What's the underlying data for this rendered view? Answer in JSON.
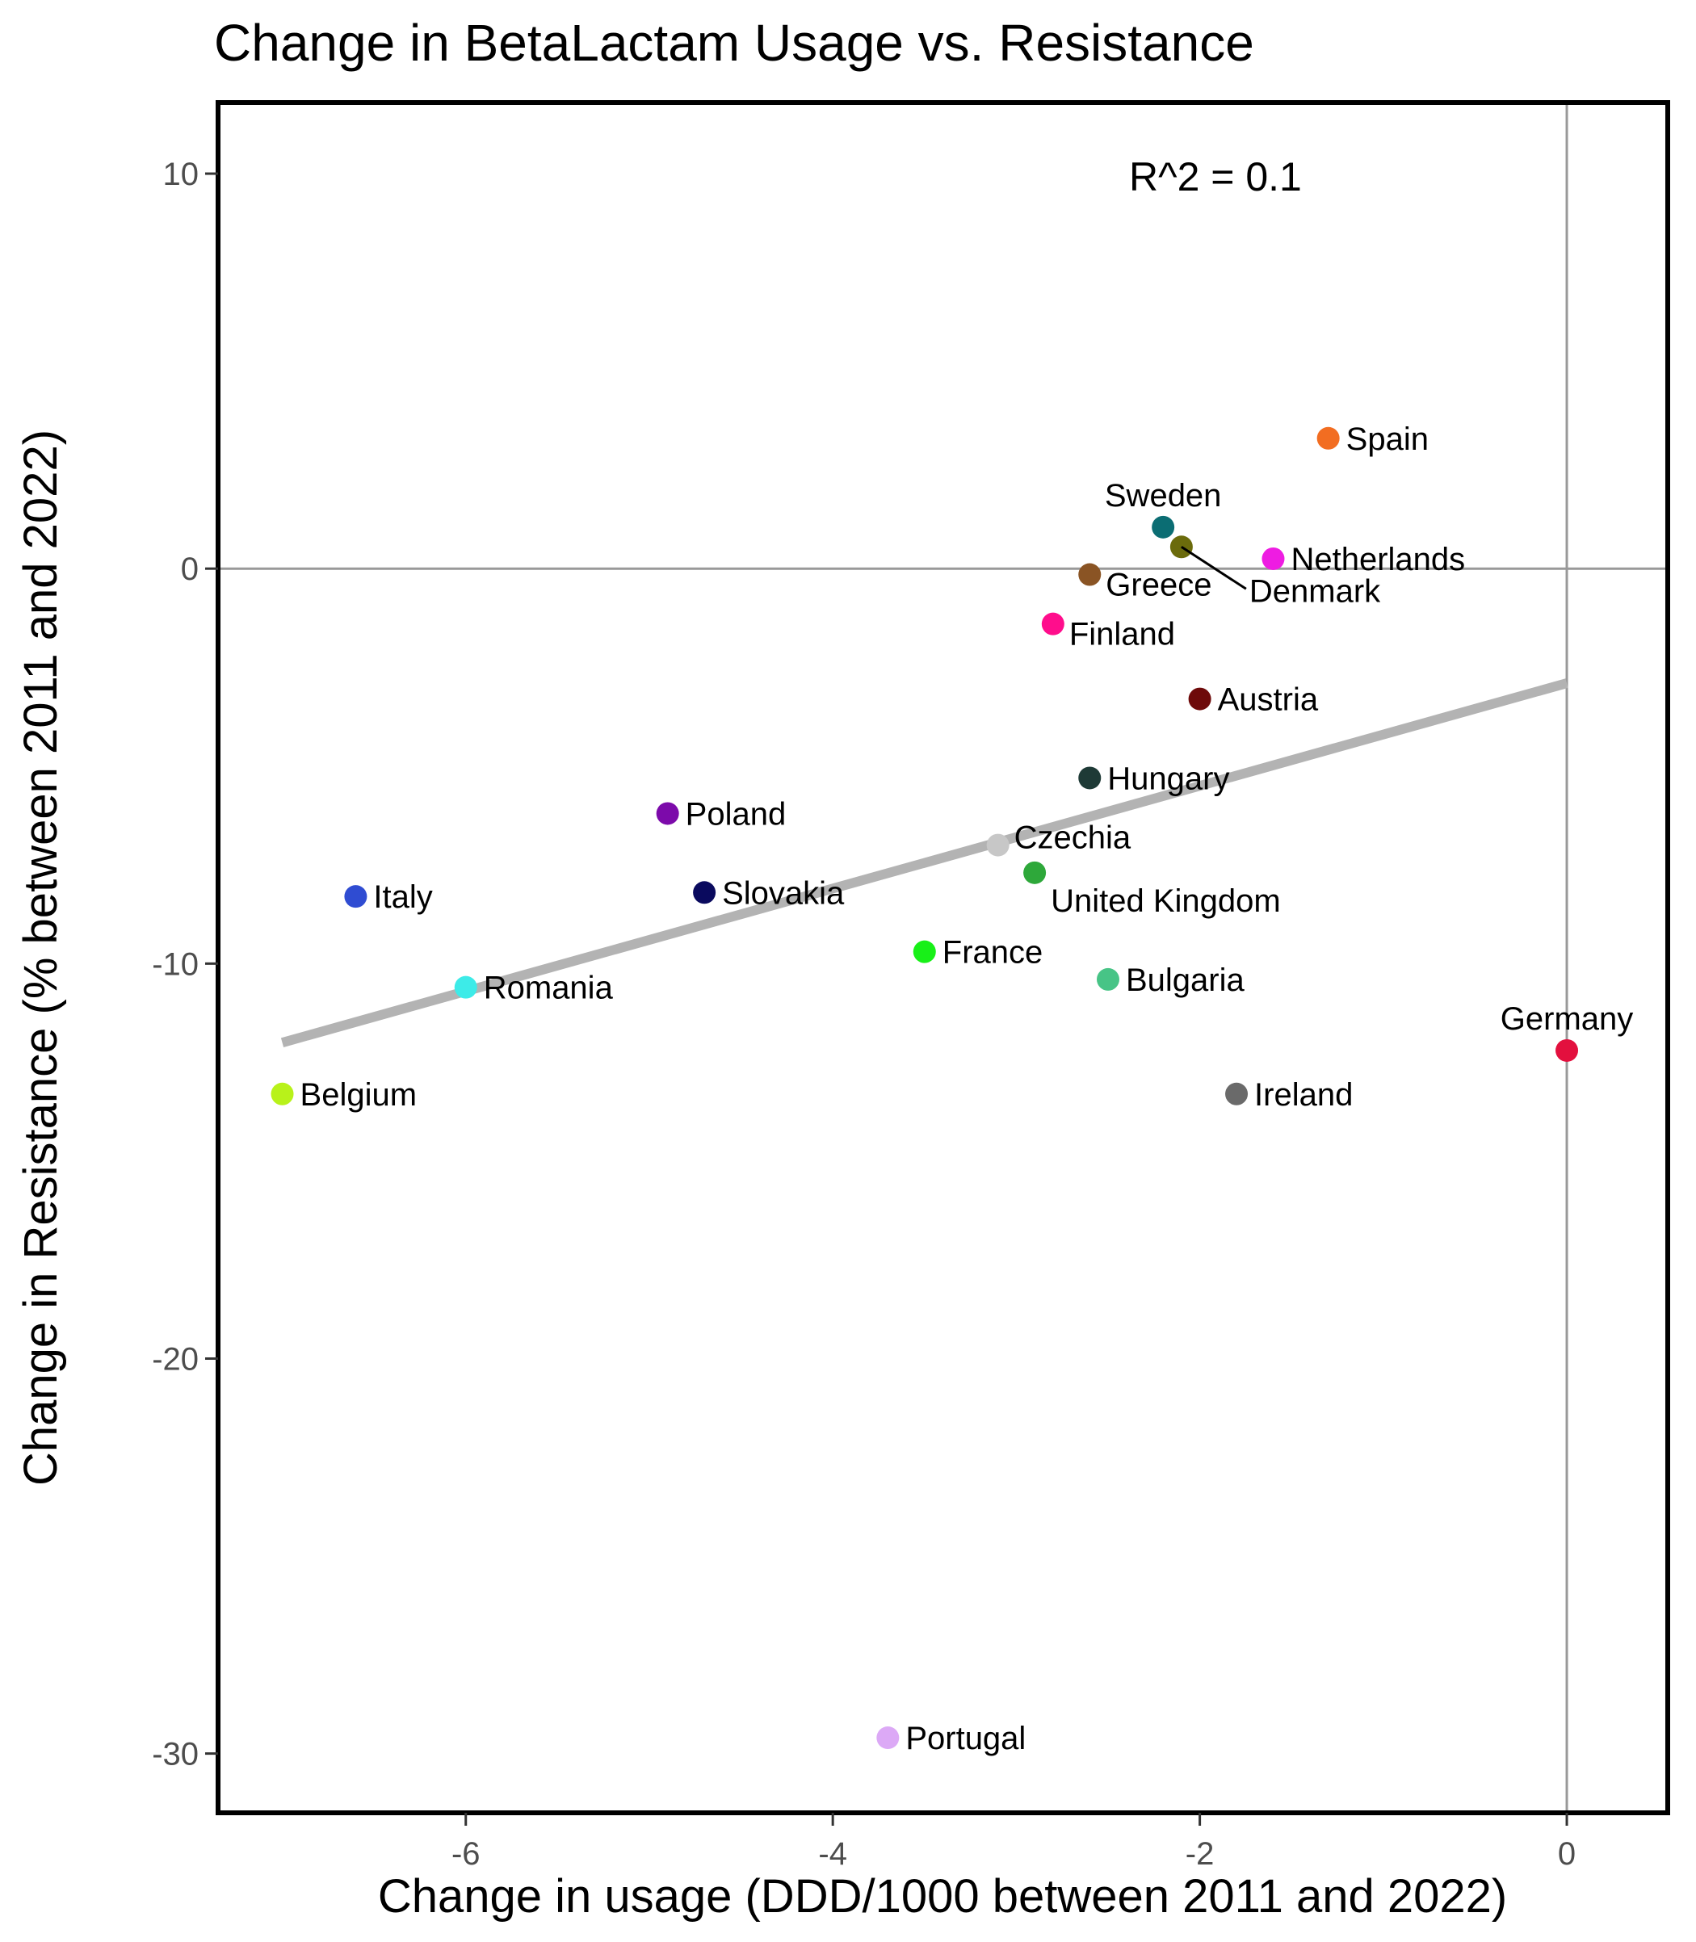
{
  "chart_data": {
    "type": "scatter",
    "title": "Change in BetaLactam Usage vs. Resistance",
    "xlabel": "Change in usage (DDD/1000 between 2011 and 2022)",
    "ylabel": "Change in Resistance (% between 2011 and 2022)",
    "xlim": [
      -7.35,
      0.55
    ],
    "ylim": [
      -31.5,
      11.8
    ],
    "x_ticks": [
      -6,
      -4,
      -2,
      0
    ],
    "y_ticks": [
      10,
      0,
      -10,
      -20,
      -30
    ],
    "x_tick_labels": [
      "-6",
      "-4",
      "-2",
      "0"
    ],
    "y_tick_labels": [
      "10",
      "0",
      "-10",
      "-20",
      "-30"
    ],
    "reference_lines": {
      "x": 0,
      "y": 0,
      "color": "#999999"
    },
    "annotation": "R^2 = 0.1",
    "trend_line": {
      "x": [
        -7.0,
        0.0
      ],
      "y": [
        -12.0,
        -2.9
      ],
      "color": "#b3b3b3"
    },
    "grid": false,
    "legend": "none",
    "points": [
      {
        "label": "Spain",
        "x": -1.3,
        "y": 3.3,
        "color": "#f26d21",
        "label_pos": "right"
      },
      {
        "label": "Sweden",
        "x": -2.2,
        "y": 1.05,
        "color": "#0b6d73",
        "label_pos": "above"
      },
      {
        "label": "Denmark",
        "x": -2.1,
        "y": 0.55,
        "color": "#6b6b0c",
        "label_pos": "below-right-leader"
      },
      {
        "label": "Netherlands",
        "x": -1.6,
        "y": 0.25,
        "color": "#ee1ce2",
        "label_pos": "right"
      },
      {
        "label": "Greece",
        "x": -2.6,
        "y": -0.15,
        "color": "#8a5424",
        "label_pos": "right-below"
      },
      {
        "label": "Finland",
        "x": -2.8,
        "y": -1.4,
        "color": "#ff0d8c",
        "label_pos": "right-below"
      },
      {
        "label": "Austria",
        "x": -2.0,
        "y": -3.3,
        "color": "#6e0a0a",
        "label_pos": "right"
      },
      {
        "label": "Hungary",
        "x": -2.6,
        "y": -5.3,
        "color": "#1e3a36",
        "label_pos": "right"
      },
      {
        "label": "Poland",
        "x": -4.9,
        "y": -6.2,
        "color": "#7c0aaa",
        "label_pos": "right"
      },
      {
        "label": "Czechia",
        "x": -3.1,
        "y": -7.0,
        "color": "#c7c7c7",
        "label_pos": "right-above"
      },
      {
        "label": "United Kingdom",
        "x": -2.9,
        "y": -7.7,
        "color": "#2ea83a",
        "label_pos": "below-right"
      },
      {
        "label": "Italy",
        "x": -6.6,
        "y": -8.3,
        "color": "#2f4cd2",
        "label_pos": "right"
      },
      {
        "label": "Slovakia",
        "x": -4.7,
        "y": -8.2,
        "color": "#0a0a5e",
        "label_pos": "right"
      },
      {
        "label": "France",
        "x": -3.5,
        "y": -9.7,
        "color": "#18f018",
        "label_pos": "right"
      },
      {
        "label": "Bulgaria",
        "x": -2.5,
        "y": -10.4,
        "color": "#47c486",
        "label_pos": "right"
      },
      {
        "label": "Romania",
        "x": -6.0,
        "y": -10.6,
        "color": "#3debe8",
        "label_pos": "right"
      },
      {
        "label": "Germany",
        "x": 0.0,
        "y": -12.2,
        "color": "#e3103e",
        "label_pos": "above"
      },
      {
        "label": "Belgium",
        "x": -7.0,
        "y": -13.3,
        "color": "#b8f21a",
        "label_pos": "right"
      },
      {
        "label": "Ireland",
        "x": -1.8,
        "y": -13.3,
        "color": "#6a6a6a",
        "label_pos": "right"
      },
      {
        "label": "Portugal",
        "x": -3.7,
        "y": -29.6,
        "color": "#dca9f6",
        "label_pos": "right"
      }
    ]
  }
}
